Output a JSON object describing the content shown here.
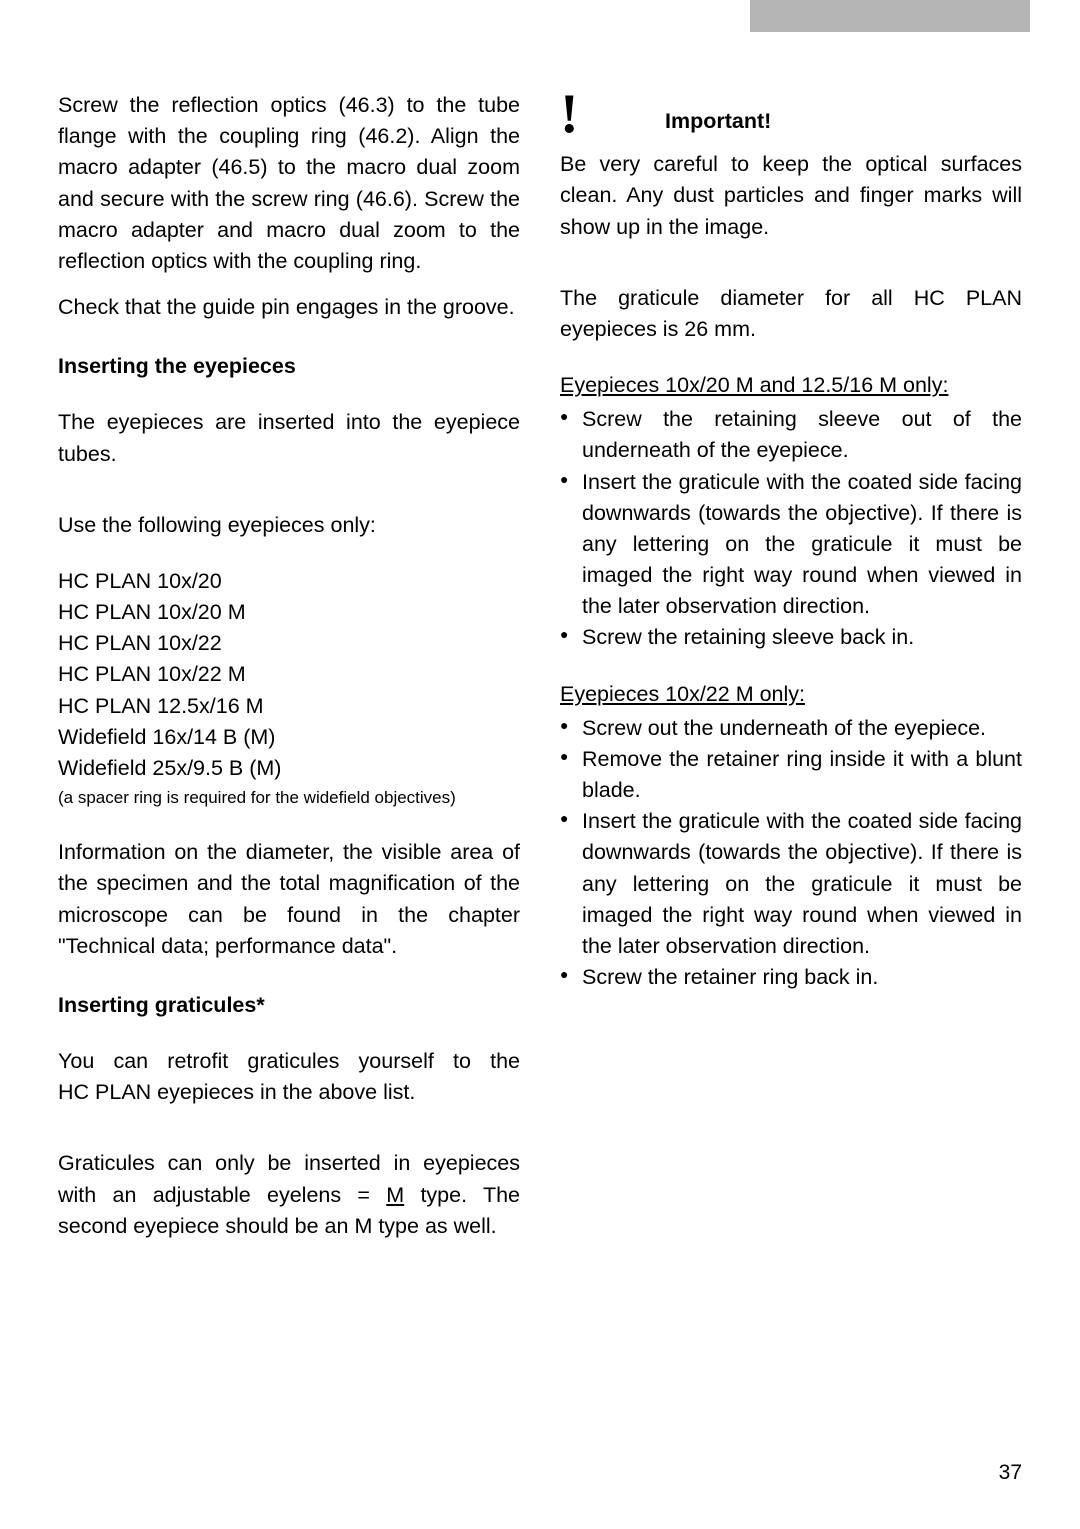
{
  "left": {
    "para1": "Screw the reflection optics (46.3) to the tube flange with the coupling ring (46.2). Align the macro adapter (46.5) to the macro dual zoom and secure with the screw ring (46.6). Screw the macro adapter and macro dual zoom to the reflection optics with the coupling ring.",
    "para1b": "Check that the guide pin engages in the groove.",
    "heading1": "Inserting the eyepieces",
    "para2": "The eyepieces are inserted into the eyepiece tubes.",
    "para3": "Use the following eyepieces only:",
    "eyepieces": [
      "HC PLAN 10x/20",
      "HC PLAN 10x/20 M",
      "HC PLAN 10x/22",
      "HC PLAN 10x/22 M",
      "HC PLAN 12.5x/16 M",
      "Widefield 16x/14 B (M)",
      "Widefield 25x/9.5 B (M)"
    ],
    "spacer_note": "(a spacer ring is required for the widefield objectives)",
    "para4": "Information on the diameter, the visible area of the specimen and the total magnification of the microscope can be found in the chapter \"Technical data; performance data\".",
    "heading2": "Inserting graticules*",
    "para5": "You can retrofit graticules yourself to the HC PLAN eyepieces in the above list.",
    "para6a": "Graticules can only be inserted in eyepieces with an adjustable eyelens = ",
    "para6_m": "M",
    "para6b": " type. The second eyepiece should be an M type as well."
  },
  "right": {
    "important_label": "Important!",
    "para1": "Be very careful to keep the optical surfaces clean. Any dust particles and finger marks will show up in the image.",
    "para2": "The graticule diameter for all HC PLAN eyepieces is 26 mm.",
    "section1_title": "Eyepieces 10x/20 M and 12.5/16 M only:",
    "section1_bullets": [
      "Screw the retaining sleeve out of the underneath of the eyepiece.",
      "Insert the graticule with the coated side facing downwards (towards the objective). If there is any lettering on the graticule it must be imaged the right way round when viewed in the later observation direction.",
      "Screw the retaining sleeve back in."
    ],
    "section2_title": "Eyepieces 10x/22 M only:",
    "section2_bullets": [
      "Screw out the underneath of the eyepiece.",
      "Remove the retainer ring inside it with a blunt blade.",
      "Insert the graticule with the coated side facing downwards (towards the objective). If there is any lettering on the graticule it must be imaged the right way round when viewed in the later observation direction.",
      "Screw the retainer ring back in."
    ]
  },
  "page_number": "37"
}
